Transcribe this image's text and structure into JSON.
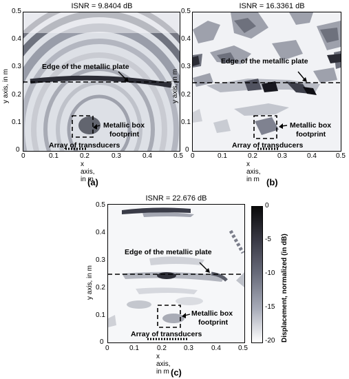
{
  "panels": [
    {
      "title": "ISNR = 9.8404 dB",
      "label": "(a)",
      "xlabel": "x axis, in m",
      "ylabel": "y axis, in m",
      "xticks": [
        "0",
        "0.1",
        "0.2",
        "0.3",
        "0.4",
        "0.5"
      ],
      "yticks": [
        "0.5",
        "0.4",
        "0.3",
        "0.2",
        "0.1",
        "0"
      ],
      "annotations": {
        "edge": "Edge of the metallic plate",
        "box_line1": "Metallic box",
        "box_line2": "footprint",
        "array": "Array of transducers"
      }
    },
    {
      "title": "ISNR = 16.3361 dB",
      "label": "(b)",
      "xlabel": "x axis, in m",
      "ylabel": "y axis, in m",
      "xticks": [
        "0",
        "0.1",
        "0.2",
        "0.3",
        "0.4",
        "0.5"
      ],
      "yticks": [
        "0.5",
        "0.4",
        "0.3",
        "0.2",
        "0.1",
        "0"
      ],
      "annotations": {
        "edge": "Edge of the metallic plate",
        "box_line1": "Metallic box",
        "box_line2": "footprint",
        "array": "Array of transducers"
      }
    },
    {
      "title": "ISNR = 22.676 dB",
      "label": "(c)",
      "xlabel": "x axis, in m",
      "ylabel": "y axis, in m",
      "xticks": [
        "0",
        "0.1",
        "0.2",
        "0.3",
        "0.4",
        "0.5"
      ],
      "yticks": [
        "0.5",
        "0.4",
        "0.3",
        "0.2",
        "0.1",
        "0"
      ],
      "annotations": {
        "edge": "Edge of the metallic plate",
        "box_line1": "Metallic box",
        "box_line2": "footprint",
        "array": "Array of transducers"
      }
    }
  ],
  "colorbar": {
    "label": "Displacement, normalized (in dB)",
    "ticks": [
      "0",
      "-5",
      "-10",
      "-15",
      "-20"
    ],
    "range": [
      -20,
      0
    ],
    "colormap": [
      "#ffffff",
      "#0a0a0a"
    ]
  },
  "chart_data": {
    "type": "heatmap",
    "xlim": [
      0,
      0.5
    ],
    "ylim": [
      0,
      0.5
    ],
    "edge_of_plate_y": 0.25,
    "array_x_range": [
      0.15,
      0.3
    ],
    "metallic_box": {
      "x": [
        0.18,
        0.26
      ],
      "y": [
        0.06,
        0.13
      ]
    }
  }
}
